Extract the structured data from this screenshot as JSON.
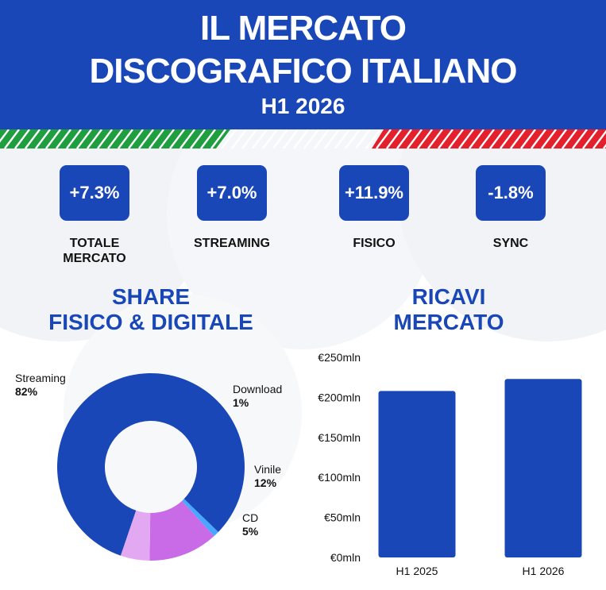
{
  "header": {
    "title_line1": "IL MERCATO",
    "title_line2": "DISCOGRAFICO ITALIANO",
    "subtitle": "H1 2026"
  },
  "colors": {
    "primary_blue": "#1a47b8",
    "italy_green": "#1e9e3e",
    "italy_red": "#e3202b",
    "purple": "#c96ae6",
    "light_purple": "#e2a8f2",
    "light_blue": "#48a8ff"
  },
  "kpis": [
    {
      "value": "+7.3%",
      "label_line1": "TOTALE",
      "label_line2": "MERCATO"
    },
    {
      "value": "+7.0%",
      "label_line1": "STREAMING",
      "label_line2": ""
    },
    {
      "value": "+11.9%",
      "label_line1": "FISICO",
      "label_line2": ""
    },
    {
      "value": "-1.8%",
      "label_line1": "SYNC",
      "label_line2": ""
    }
  ],
  "share_section": {
    "title_line1": "SHARE",
    "title_line2": "FISICO & DIGITALE"
  },
  "revenue_section": {
    "title_line1": "RICAVI",
    "title_line2": "MERCATO"
  },
  "chart_data": [
    {
      "type": "pie",
      "donut": true,
      "title": "SHARE FISICO & DIGITALE",
      "slices": [
        {
          "label": "Streaming",
          "value": 82,
          "display": "82%",
          "color": "#1a47b8"
        },
        {
          "label": "Download",
          "value": 1,
          "display": "1%",
          "color": "#48a8ff"
        },
        {
          "label": "Vinile",
          "value": 12,
          "display": "12%",
          "color": "#c96ae6"
        },
        {
          "label": "CD",
          "value": 5,
          "display": "5%",
          "color": "#e2a8f2"
        }
      ]
    },
    {
      "type": "bar",
      "title": "RICAVI MERCATO",
      "categories": [
        "H1 2025",
        "H1 2026"
      ],
      "values": [
        208,
        223
      ],
      "ylim": [
        0,
        250
      ],
      "yticks": [
        0,
        50,
        100,
        150,
        200,
        250
      ],
      "ytick_labels": [
        "€0mln",
        "€50mln",
        "€100mln",
        "€150mln",
        "€200mln",
        "€250mln"
      ],
      "color": "#1a47b8",
      "grid": false
    }
  ]
}
